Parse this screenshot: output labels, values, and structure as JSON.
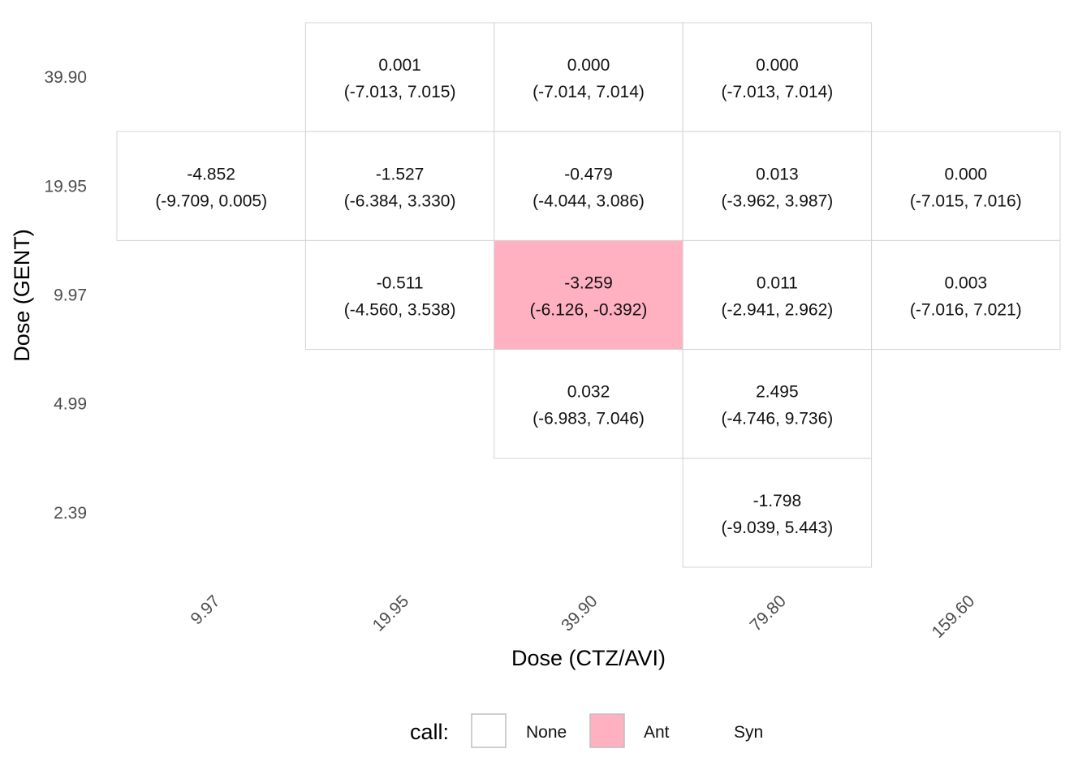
{
  "chart_data": {
    "type": "heatmap",
    "xlabel": "Dose (CTZ/AVI)",
    "ylabel": "Dose (GENT)",
    "x_categories": [
      "9.97",
      "19.95",
      "39.90",
      "79.80",
      "159.60"
    ],
    "y_categories": [
      "39.90",
      "19.95",
      "9.97",
      "4.99",
      "2.39"
    ],
    "cells": [
      {
        "x": "19.95",
        "y": "39.90",
        "value": "0.001",
        "ci": "(-7.013, 7.015)",
        "call": "None"
      },
      {
        "x": "39.90",
        "y": "39.90",
        "value": "0.000",
        "ci": "(-7.014, 7.014)",
        "call": "None"
      },
      {
        "x": "79.80",
        "y": "39.90",
        "value": "0.000",
        "ci": "(-7.013, 7.014)",
        "call": "None"
      },
      {
        "x": "9.97",
        "y": "19.95",
        "value": "-4.852",
        "ci": "(-9.709, 0.005)",
        "call": "None"
      },
      {
        "x": "19.95",
        "y": "19.95",
        "value": "-1.527",
        "ci": "(-6.384, 3.330)",
        "call": "None"
      },
      {
        "x": "39.90",
        "y": "19.95",
        "value": "-0.479",
        "ci": "(-4.044, 3.086)",
        "call": "None"
      },
      {
        "x": "79.80",
        "y": "19.95",
        "value": "0.013",
        "ci": "(-3.962, 3.987)",
        "call": "None"
      },
      {
        "x": "159.60",
        "y": "19.95",
        "value": "0.000",
        "ci": "(-7.015, 7.016)",
        "call": "None"
      },
      {
        "x": "19.95",
        "y": "9.97",
        "value": "-0.511",
        "ci": "(-4.560, 3.538)",
        "call": "None"
      },
      {
        "x": "39.90",
        "y": "9.97",
        "value": "-3.259",
        "ci": "(-6.126, -0.392)",
        "call": "Ant"
      },
      {
        "x": "79.80",
        "y": "9.97",
        "value": "0.011",
        "ci": "(-2.941, 2.962)",
        "call": "None"
      },
      {
        "x": "159.60",
        "y": "9.97",
        "value": "0.003",
        "ci": "(-7.016, 7.021)",
        "call": "None"
      },
      {
        "x": "39.90",
        "y": "4.99",
        "value": "0.032",
        "ci": "(-6.983, 7.046)",
        "call": "None"
      },
      {
        "x": "79.80",
        "y": "4.99",
        "value": "2.495",
        "ci": "(-4.746, 9.736)",
        "call": "None"
      },
      {
        "x": "79.80",
        "y": "2.39",
        "value": "-1.798",
        "ci": "(-9.039, 5.443)",
        "call": "None"
      }
    ],
    "legend": {
      "title": "call:",
      "position": "bottom",
      "items": [
        {
          "label": "None",
          "color": "#ffffff",
          "border": "#bdbdbd"
        },
        {
          "label": "Ant",
          "color": "#ffb0c1",
          "border": "#bdbdbd"
        },
        {
          "label": "Syn"
        }
      ]
    },
    "grid": false
  }
}
